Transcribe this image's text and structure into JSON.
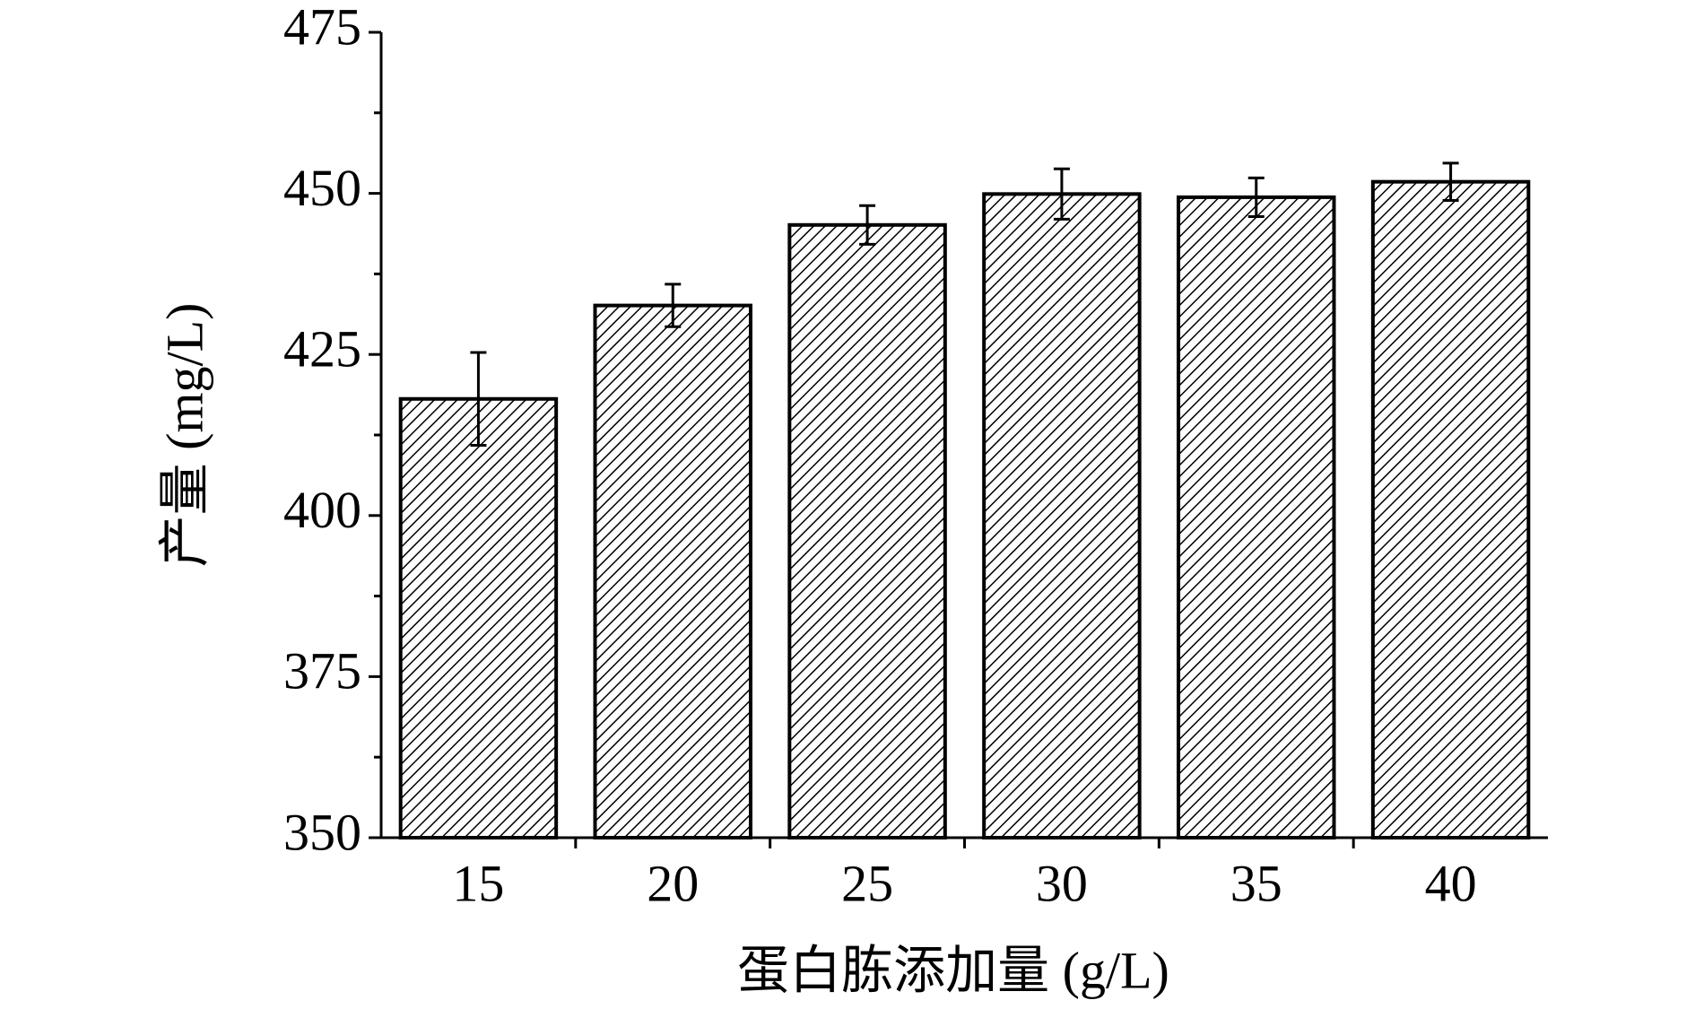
{
  "chart_data": {
    "type": "bar",
    "x_label": "蛋白胨添加量 (g/L)",
    "y_label": "产量 (mg/L)",
    "categories": [
      "15",
      "20",
      "25",
      "30",
      "35",
      "40"
    ],
    "values": [
      418.1,
      432.6,
      445.1,
      449.9,
      449.4,
      451.8
    ],
    "errors": [
      7.2,
      3.3,
      3.0,
      3.9,
      3.0,
      2.9
    ],
    "color": "#000000",
    "ylim": [
      350,
      475
    ],
    "yticks": [
      350,
      375,
      400,
      425,
      450,
      475
    ],
    "grid": false
  }
}
